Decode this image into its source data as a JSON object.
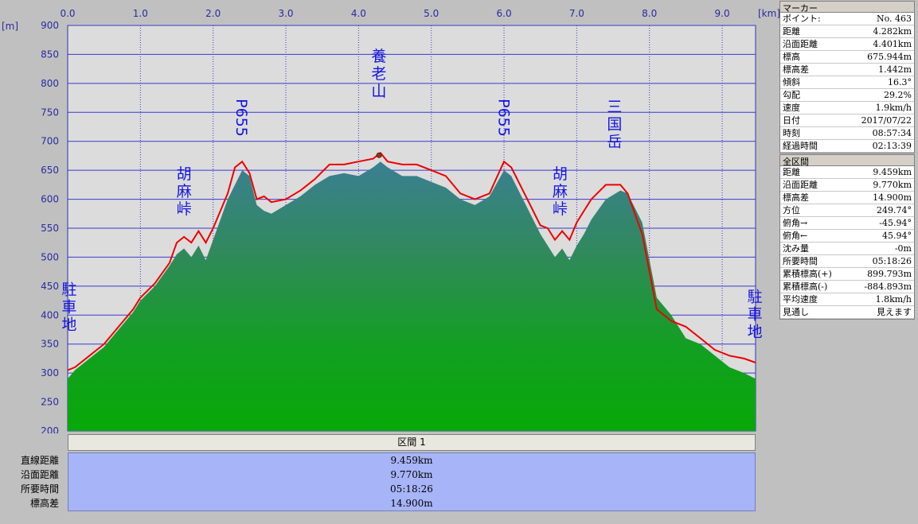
{
  "chart_data": {
    "type": "area",
    "x_unit_label": "[km]",
    "y_unit_label": "[m]",
    "xlim": [
      0,
      9.459
    ],
    "ylim": [
      200,
      900
    ],
    "x_ticks": [
      "0.0",
      "1.0",
      "2.0",
      "3.0",
      "4.0",
      "5.0",
      "6.0",
      "7.0",
      "8.0",
      "9.0"
    ],
    "y_ticks": [
      "900",
      "850",
      "800",
      "750",
      "700",
      "650",
      "600",
      "550",
      "500",
      "450",
      "400",
      "350",
      "300",
      "250",
      "200"
    ],
    "grid": true,
    "series": [
      {
        "kind": "elevation-area",
        "x": [
          0,
          0.1,
          0.3,
          0.5,
          0.7,
          0.9,
          1.0,
          1.2,
          1.4,
          1.5,
          1.6,
          1.7,
          1.8,
          1.9,
          2.0,
          2.2,
          2.4,
          2.5,
          2.6,
          2.7,
          2.8,
          3.0,
          3.2,
          3.4,
          3.6,
          3.8,
          4.0,
          4.2,
          4.3,
          4.4,
          4.6,
          4.8,
          5.0,
          5.2,
          5.4,
          5.6,
          5.8,
          6.0,
          6.1,
          6.3,
          6.5,
          6.6,
          6.7,
          6.8,
          6.9,
          7.0,
          7.1,
          7.2,
          7.4,
          7.6,
          7.7,
          7.9,
          8.1,
          8.3,
          8.5,
          8.7,
          8.9,
          9.1,
          9.3,
          9.459
        ],
        "y": [
          290,
          305,
          325,
          345,
          375,
          405,
          425,
          450,
          485,
          505,
          515,
          500,
          520,
          495,
          530,
          600,
          650,
          640,
          590,
          580,
          575,
          590,
          605,
          625,
          640,
          645,
          640,
          655,
          665,
          655,
          640,
          640,
          630,
          620,
          600,
          590,
          605,
          650,
          640,
          590,
          540,
          520,
          500,
          515,
          495,
          520,
          540,
          565,
          600,
          615,
          610,
          560,
          430,
          400,
          360,
          350,
          330,
          310,
          300,
          290
        ]
      },
      {
        "kind": "slope-distance-line",
        "color": "#ee0000",
        "x": [
          0,
          0.1,
          0.3,
          0.5,
          0.7,
          0.9,
          1.0,
          1.2,
          1.4,
          1.5,
          1.6,
          1.7,
          1.8,
          1.9,
          2.0,
          2.2,
          2.3,
          2.4,
          2.5,
          2.6,
          2.7,
          2.8,
          3.0,
          3.2,
          3.4,
          3.6,
          3.8,
          4.0,
          4.2,
          4.3,
          4.4,
          4.6,
          4.8,
          5.0,
          5.2,
          5.4,
          5.6,
          5.8,
          6.0,
          6.1,
          6.3,
          6.5,
          6.6,
          6.7,
          6.8,
          6.9,
          7.0,
          7.1,
          7.2,
          7.4,
          7.6,
          7.7,
          7.9,
          8.1,
          8.3,
          8.5,
          8.7,
          8.9,
          9.1,
          9.3,
          9.459
        ],
        "y": [
          305,
          310,
          330,
          350,
          380,
          410,
          430,
          455,
          490,
          525,
          535,
          525,
          545,
          525,
          550,
          610,
          655,
          665,
          645,
          600,
          605,
          595,
          600,
          615,
          635,
          660,
          660,
          665,
          670,
          680,
          665,
          660,
          660,
          650,
          640,
          610,
          600,
          610,
          665,
          655,
          605,
          555,
          550,
          530,
          545,
          530,
          560,
          580,
          600,
          625,
          625,
          610,
          540,
          410,
          390,
          380,
          360,
          340,
          330,
          325,
          318
        ]
      }
    ],
    "peak_labels": [
      {
        "text": "駐車地",
        "x": 0.02,
        "y": 372
      },
      {
        "text": "胡麻峠",
        "x": 1.6,
        "y": 572
      },
      {
        "text": "P655",
        "x": 2.38,
        "y": 708
      },
      {
        "text": "養老山",
        "x": 4.28,
        "y": 775
      },
      {
        "text": "P655",
        "x": 5.99,
        "y": 708
      },
      {
        "text": "胡麻峠",
        "x": 6.77,
        "y": 572
      },
      {
        "text": "三国岳",
        "x": 7.52,
        "y": 688
      },
      {
        "text": "駐車地",
        "x": 9.45,
        "y": 360
      }
    ],
    "marker_x": 4.282,
    "marker_y": 675.944
  },
  "marker_panel": {
    "title": "マーカー",
    "rows": [
      {
        "k": "ポイント:",
        "v": "No. 463"
      },
      {
        "k": "距離",
        "v": "4.282km"
      },
      {
        "k": "沿面距離",
        "v": "4.401km"
      },
      {
        "k": "標高",
        "v": "675.944m"
      },
      {
        "k": "標高差",
        "v": "1.442m"
      },
      {
        "k": "傾斜",
        "v": "16.3°"
      },
      {
        "k": "勾配",
        "v": "29.2%"
      },
      {
        "k": "速度",
        "v": "1.9km/h"
      },
      {
        "k": "日付",
        "v": "2017/07/22"
      },
      {
        "k": "時刻",
        "v": "08:57:34"
      },
      {
        "k": "経過時間",
        "v": "02:13:39"
      }
    ]
  },
  "total_panel": {
    "title": "全区間",
    "rows": [
      {
        "k": "距離",
        "v": "9.459km"
      },
      {
        "k": "沿面距離",
        "v": "9.770km"
      },
      {
        "k": "標高差",
        "v": "14.900m"
      },
      {
        "k": "方位",
        "v": "249.74°"
      },
      {
        "k": "俯角→",
        "v": "-45.94°"
      },
      {
        "k": "俯角←",
        "v": "45.94°"
      },
      {
        "k": "沈み量",
        "v": "-0m"
      },
      {
        "k": "所要時間",
        "v": "05:18:26"
      },
      {
        "k": "累積標高(+)",
        "v": "899.793m"
      },
      {
        "k": "累積標高(-)",
        "v": "-884.893m"
      },
      {
        "k": "平均速度",
        "v": "1.8km/h"
      },
      {
        "k": "見通し",
        "v": "見えます"
      }
    ]
  },
  "section": {
    "header": "区間 1",
    "labels": [
      "直線距離",
      "沿面距離",
      "所要時間",
      "標高差"
    ],
    "values": [
      "9.459km",
      "9.770km",
      "05:18:26",
      "14.900m"
    ]
  }
}
